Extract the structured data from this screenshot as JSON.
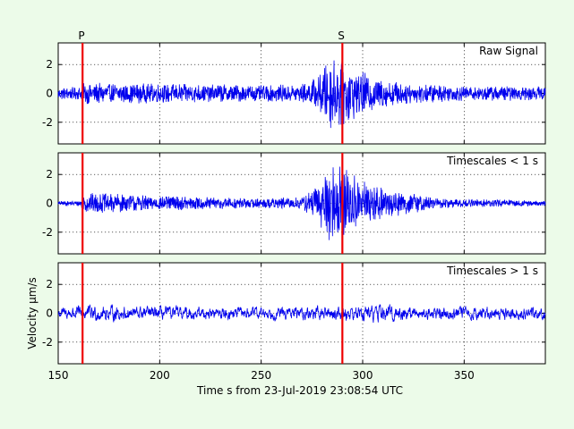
{
  "chart_data": [
    {
      "type": "line",
      "panel_label": "Raw Signal",
      "xlim": [
        150,
        390
      ],
      "ylim": [
        -3.5,
        3.5
      ],
      "y_ticks": [
        -2,
        0,
        2
      ],
      "grid": true,
      "picks": [
        {
          "name": "P",
          "x": 162
        },
        {
          "name": "S",
          "x": 290
        }
      ],
      "noise_amplitude": 0.45,
      "envelope": [
        [
          150,
          0.45
        ],
        [
          160,
          0.45
        ],
        [
          163,
          0.75
        ],
        [
          200,
          0.7
        ],
        [
          250,
          0.6
        ],
        [
          270,
          0.65
        ],
        [
          278,
          1.2
        ],
        [
          285,
          2.8
        ],
        [
          292,
          2.2
        ],
        [
          300,
          1.6
        ],
        [
          310,
          1.0
        ],
        [
          325,
          0.7
        ],
        [
          350,
          0.55
        ],
        [
          390,
          0.5
        ]
      ]
    },
    {
      "type": "line",
      "panel_label": "Timescales < 1 s",
      "xlim": [
        150,
        390
      ],
      "ylim": [
        -3.5,
        3.5
      ],
      "y_ticks": [
        -2,
        0,
        2
      ],
      "grid": true,
      "picks": [
        {
          "name": "P",
          "x": 162
        },
        {
          "name": "S",
          "x": 290
        }
      ],
      "envelope": [
        [
          150,
          0.15
        ],
        [
          160,
          0.2
        ],
        [
          163,
          0.75
        ],
        [
          200,
          0.55
        ],
        [
          250,
          0.35
        ],
        [
          270,
          0.45
        ],
        [
          278,
          1.4
        ],
        [
          285,
          3.1
        ],
        [
          292,
          2.4
        ],
        [
          300,
          1.6
        ],
        [
          310,
          1.1
        ],
        [
          325,
          0.7
        ],
        [
          340,
          0.35
        ],
        [
          390,
          0.2
        ]
      ]
    },
    {
      "type": "line",
      "panel_label": "Timescales > 1 s",
      "xlim": [
        150,
        390
      ],
      "ylim": [
        -3.5,
        3.5
      ],
      "y_ticks": [
        -2,
        0,
        2
      ],
      "grid": true,
      "picks": [
        {
          "name": "P",
          "x": 162
        },
        {
          "name": "S",
          "x": 290
        }
      ],
      "ylabel": "Velocity μm/s",
      "envelope": [
        [
          150,
          0.4
        ],
        [
          165,
          0.55
        ],
        [
          200,
          0.45
        ],
        [
          250,
          0.4
        ],
        [
          280,
          0.45
        ],
        [
          310,
          0.6
        ],
        [
          330,
          0.45
        ],
        [
          390,
          0.45
        ]
      ]
    }
  ],
  "x_axis": {
    "ticks": [
      150,
      200,
      250,
      300,
      350
    ],
    "xlabel": "Time s from 23-Jul-2019 23:08:54 UTC"
  },
  "pick_labels": {
    "p": "P",
    "s": "S"
  },
  "colors": {
    "trace": "#0000ee",
    "pick": "#ee0000",
    "background": "#ecfbe9"
  }
}
